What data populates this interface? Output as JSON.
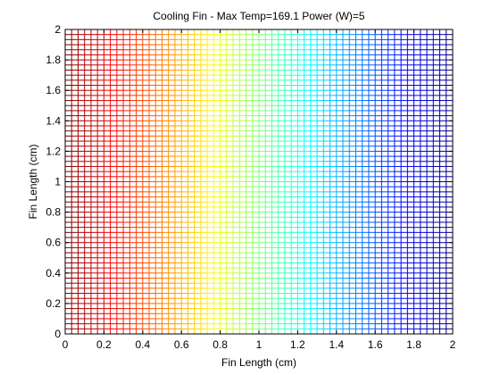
{
  "chart_data": {
    "type": "heatmap",
    "title": "Cooling Fin - Max Temp=169.1 Power (W)=5",
    "xlabel": "Fin Length (cm)",
    "ylabel": "Fin Length (cm)",
    "xlim": [
      0,
      2
    ],
    "ylim": [
      0,
      2
    ],
    "x_ticks": [
      0,
      0.2,
      0.4,
      0.6,
      0.8,
      1,
      1.2,
      1.4,
      1.6,
      1.8,
      2
    ],
    "y_ticks": [
      0,
      0.2,
      0.4,
      0.6,
      0.8,
      1,
      1.2,
      1.4,
      1.6,
      1.8,
      2
    ],
    "x_tick_labels": [
      "0",
      "0.2",
      "0.4",
      "0.6",
      "0.8",
      "1",
      "1.2",
      "1.4",
      "1.6",
      "1.8",
      "2"
    ],
    "y_tick_labels": [
      "0",
      "0.2",
      "0.4",
      "0.6",
      "0.8",
      "1",
      "1.2",
      "1.4",
      "1.6",
      "1.8",
      "2"
    ],
    "mesh_x_divisions": 60,
    "mesh_y_divisions": 60,
    "colormap": "jet",
    "color_gradient_direction": "temperature decreases left to right (red at x=0, blue at x=2)",
    "max_temp": 169.1,
    "power_w": 5,
    "grid": true
  }
}
